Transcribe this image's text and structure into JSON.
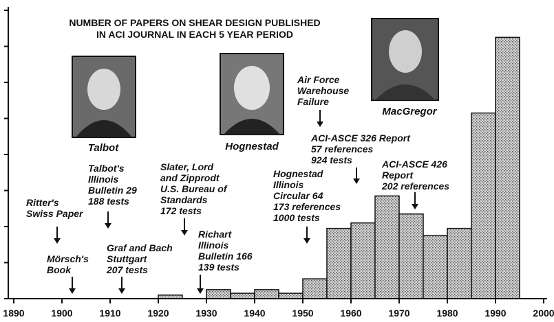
{
  "chart_data": {
    "type": "histogram",
    "title": [
      "NUMBER OF PAPERS ON SHEAR DESIGN PUBLISHED",
      "IN ACI JOURNAL IN EACH 5 YEAR PERIOD"
    ],
    "bins": [
      1920,
      1925,
      1930,
      1935,
      1940,
      1945,
      1950,
      1955,
      1960,
      1965,
      1970,
      1975,
      1980,
      1985,
      1990,
      1995
    ],
    "values": [
      1,
      0,
      2.5,
      1.5,
      2.5,
      1.5,
      5.5,
      19.5,
      21,
      28.5,
      23.5,
      17.5,
      19.5,
      51.5,
      72.5
    ],
    "color": "#b8b8b8",
    "xlim": [
      1890,
      2000
    ],
    "xticks": [
      1890,
      1900,
      1910,
      1920,
      1930,
      1940,
      1950,
      1960,
      1970,
      1980,
      1990,
      2000
    ],
    "ylim": [
      0,
      80
    ],
    "yticks": [
      0,
      10,
      20,
      30,
      40,
      50,
      60,
      70,
      80
    ],
    "annotations": [
      {
        "lines": [
          "Ritter's",
          "Swiss Paper"
        ]
      },
      {
        "lines": [
          "Mörsch's",
          "Book"
        ]
      },
      {
        "lines": [
          "Talbot's",
          "Illinois",
          "Bulletin 29",
          "188 tests"
        ]
      },
      {
        "lines": [
          "Graf and Bach",
          "Stuttgart",
          "207 tests"
        ]
      },
      {
        "lines": [
          "Slater, Lord",
          "and Zipprodt",
          "U.S. Bureau of",
          "Standards",
          "172 tests"
        ]
      },
      {
        "lines": [
          "Richart",
          "Illinois",
          "Bulletin 166",
          "139 tests"
        ]
      },
      {
        "lines": [
          "Hognestad",
          "Illinois",
          "Circular 64",
          "173 references",
          "1000 tests"
        ]
      },
      {
        "lines": [
          "Air Force",
          "Warehouse",
          "Failure"
        ]
      },
      {
        "lines": [
          "ACI-ASCE 326 Report",
          "57 references",
          "924 tests"
        ]
      },
      {
        "lines": [
          "ACI-ASCE 426",
          "Report",
          "202 references"
        ]
      }
    ],
    "photo_captions": [
      "Talbot",
      "Hognestad",
      "MacGregor"
    ]
  }
}
